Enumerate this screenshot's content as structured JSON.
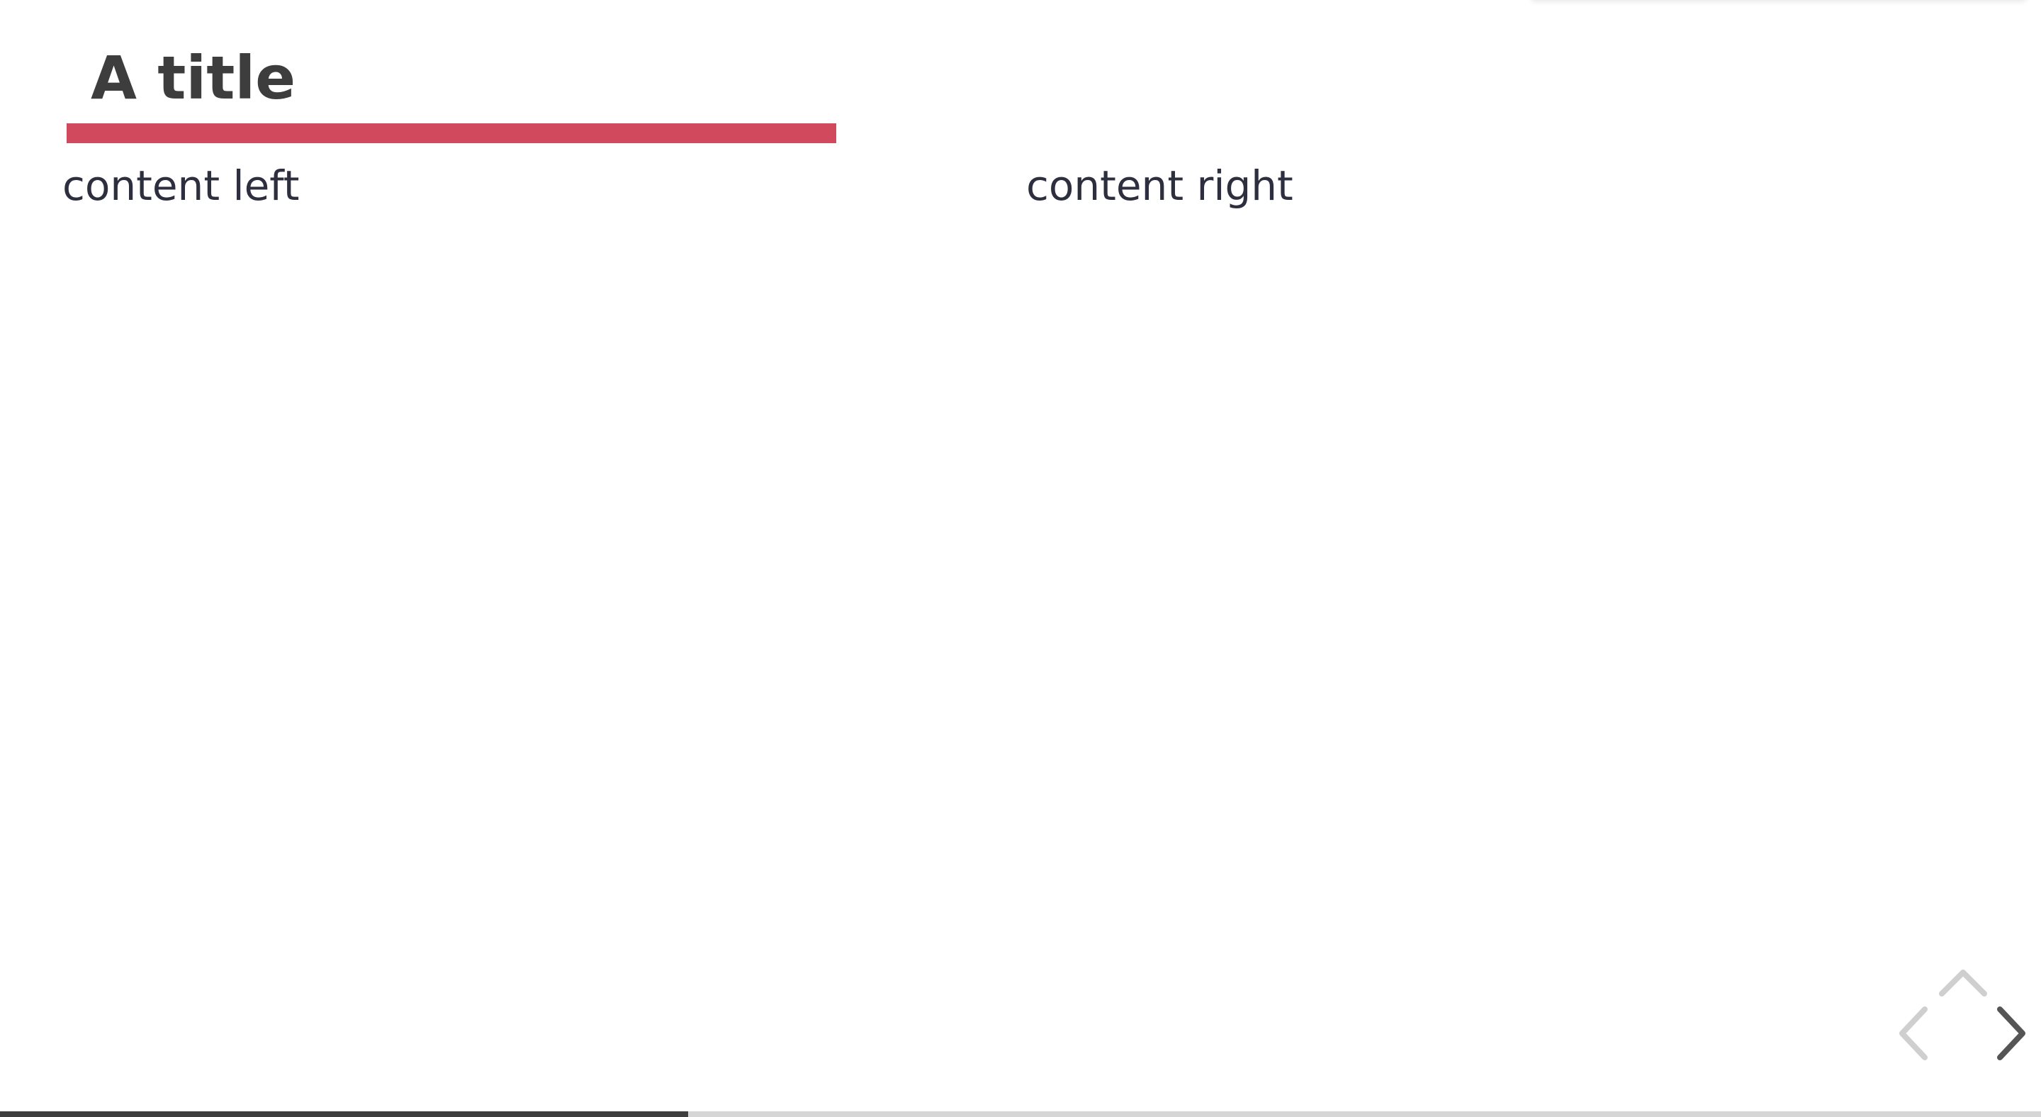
{
  "slide": {
    "title": "A title",
    "content_left": "content left",
    "content_right": "content right"
  },
  "navigation": {
    "up_icon": "chevron-up-icon",
    "left_icon": "chevron-left-icon",
    "right_icon": "chevron-right-icon",
    "up_enabled": false,
    "left_enabled": false,
    "right_enabled": true
  },
  "progress": {
    "fraction": 0.337
  },
  "colors": {
    "accent": "#d0495c",
    "title_text": "#3d3d3d",
    "body_text": "#2d2f3e",
    "nav_disabled": "#cfcfcf",
    "nav_enabled": "#555555",
    "progress_fill": "#3d3d3d",
    "progress_track": "#d6d6d6"
  }
}
